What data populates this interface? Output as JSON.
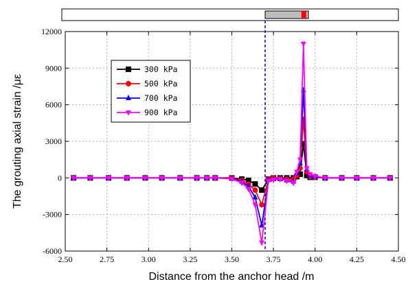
{
  "chart_data": {
    "type": "line",
    "title": "",
    "xlabel": "Distance from the anchor head   /m",
    "ylabel": "The grouting axial strain   /με",
    "xlim": [
      2.5,
      4.5
    ],
    "ylim": [
      -6000,
      12000
    ],
    "xticks": [
      "2.50",
      "2.75",
      "3.00",
      "3.25",
      "3.50",
      "3.75",
      "4.00",
      "4.25",
      "4.50"
    ],
    "yticks": [
      "-6000",
      "-3000",
      "0",
      "3000",
      "6000",
      "9000",
      "12000"
    ],
    "grid": true,
    "legend_position": "upper-left",
    "reference_line_x": 3.7,
    "schematic_bar": {
      "tube_start": 3.7,
      "tube_end": 3.96,
      "marker_at": 3.93
    },
    "x": [
      2.55,
      2.65,
      2.76,
      2.87,
      2.98,
      3.08,
      3.19,
      3.29,
      3.35,
      3.4,
      3.5,
      3.56,
      3.6,
      3.64,
      3.68,
      3.72,
      3.75,
      3.79,
      3.83,
      3.87,
      3.89,
      3.91,
      3.93,
      3.95,
      3.97,
      4.0,
      4.06,
      4.16,
      4.25,
      4.35,
      4.45
    ],
    "series": [
      {
        "name": "300 kPa",
        "color": "#000000",
        "marker": "square",
        "values": [
          0,
          0,
          0,
          0,
          0,
          0,
          0,
          0,
          0,
          0,
          0,
          -100,
          -200,
          -500,
          -1000,
          -100,
          0,
          0,
          0,
          0,
          100,
          300,
          2800,
          200,
          50,
          50,
          0,
          0,
          0,
          0,
          0
        ]
      },
      {
        "name": "500 kPa",
        "color": "#ff0000",
        "marker": "circle",
        "values": [
          0,
          0,
          0,
          0,
          0,
          0,
          0,
          0,
          0,
          0,
          0,
          -200,
          -500,
          -1000,
          -2200,
          -100,
          0,
          -50,
          -100,
          -100,
          200,
          800,
          4800,
          500,
          100,
          50,
          0,
          0,
          0,
          0,
          0
        ]
      },
      {
        "name": "700 kPa",
        "color": "#0000ff",
        "marker": "triangle-up",
        "values": [
          0,
          0,
          0,
          0,
          0,
          0,
          0,
          0,
          0,
          0,
          -50,
          -300,
          -700,
          -1600,
          -3900,
          -150,
          -100,
          -100,
          -200,
          -300,
          400,
          1200,
          7200,
          700,
          200,
          100,
          0,
          0,
          0,
          0,
          0
        ]
      },
      {
        "name": "900 kPa",
        "color": "#ff00ff",
        "marker": "triangle-down",
        "values": [
          0,
          0,
          0,
          0,
          0,
          0,
          0,
          0,
          0,
          0,
          -80,
          -400,
          -900,
          -2200,
          -5300,
          -250,
          -150,
          -100,
          -250,
          -400,
          500,
          1500,
          11000,
          800,
          300,
          150,
          0,
          0,
          0,
          0,
          0
        ]
      }
    ]
  }
}
